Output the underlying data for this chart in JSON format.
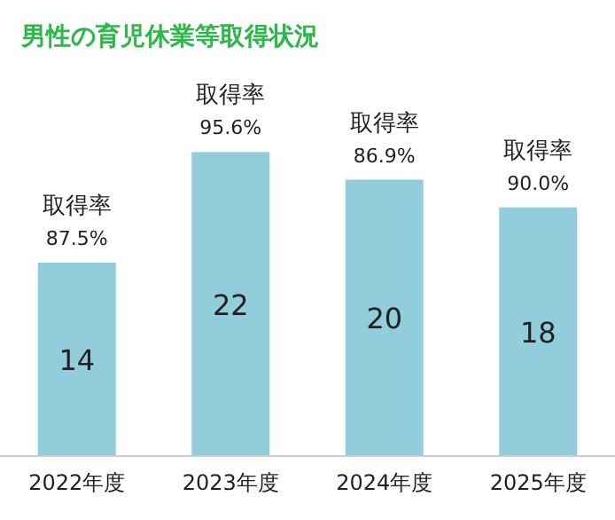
{
  "chart_data": {
    "type": "bar",
    "title": "男性の育児休業等取得状況",
    "categories": [
      "2022年度",
      "2023年度",
      "2024年度",
      "2025年度"
    ],
    "values": [
      14,
      22,
      20,
      18
    ],
    "color": "#92cddc",
    "data_labels": true,
    "annotations": [
      {
        "text": "取得率\n87.5%",
        "x": "2022年度",
        "y": 14
      },
      {
        "text": "取得率\n95.6%",
        "x": "2023年度",
        "y": 22
      },
      {
        "text": "取得率\n86.9%",
        "x": "2024年度",
        "y": 20
      },
      {
        "text": "取得率\n90.0%",
        "x": "2025年度",
        "y": 18
      }
    ]
  }
}
